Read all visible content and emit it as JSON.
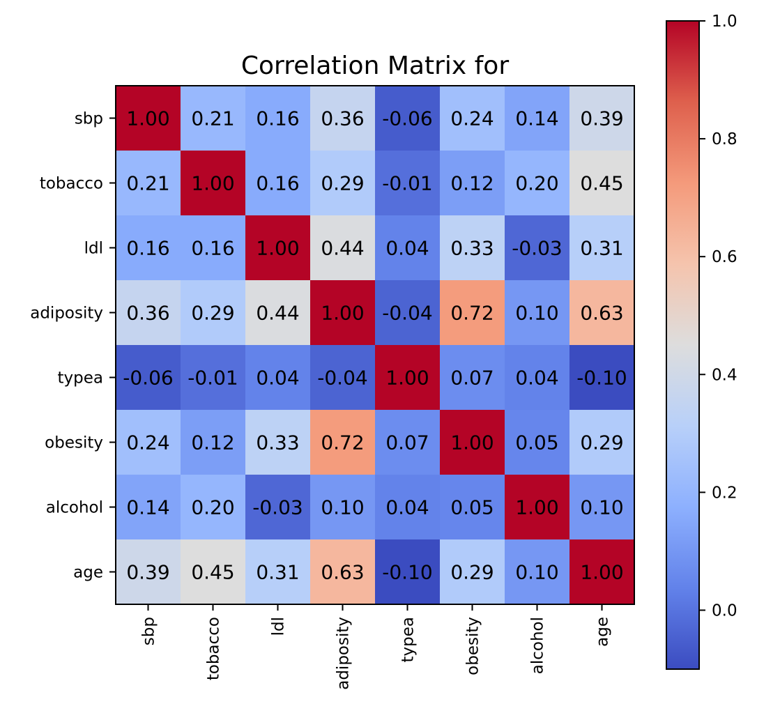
{
  "chart_data": {
    "type": "heatmap",
    "title": "Correlation Matrix for",
    "labels": [
      "sbp",
      "tobacco",
      "ldl",
      "adiposity",
      "typea",
      "obesity",
      "alcohol",
      "age"
    ],
    "values": [
      [
        1.0,
        0.21,
        0.16,
        0.36,
        -0.06,
        0.24,
        0.14,
        0.39
      ],
      [
        0.21,
        1.0,
        0.16,
        0.29,
        -0.01,
        0.12,
        0.2,
        0.45
      ],
      [
        0.16,
        0.16,
        1.0,
        0.44,
        0.04,
        0.33,
        -0.03,
        0.31
      ],
      [
        0.36,
        0.29,
        0.44,
        1.0,
        -0.04,
        0.72,
        0.1,
        0.63
      ],
      [
        -0.06,
        -0.01,
        0.04,
        -0.04,
        1.0,
        0.07,
        0.04,
        -0.1
      ],
      [
        0.24,
        0.12,
        0.33,
        0.72,
        0.07,
        1.0,
        0.05,
        0.29
      ],
      [
        0.14,
        0.2,
        -0.03,
        0.1,
        0.04,
        0.05,
        1.0,
        0.1
      ],
      [
        0.39,
        0.45,
        0.31,
        0.63,
        -0.1,
        0.29,
        0.1,
        1.0
      ]
    ],
    "value_format": "0.00",
    "colormap": "coolwarm",
    "vmin": -0.1,
    "vmax": 1.0,
    "colorbar": {
      "ticks": [
        0.0,
        0.2,
        0.4,
        0.6,
        0.8,
        1.0
      ],
      "tick_labels": [
        "0.0",
        "0.2",
        "0.4",
        "0.6",
        "0.8",
        "1.0"
      ],
      "position": "right"
    },
    "grid": false
  }
}
